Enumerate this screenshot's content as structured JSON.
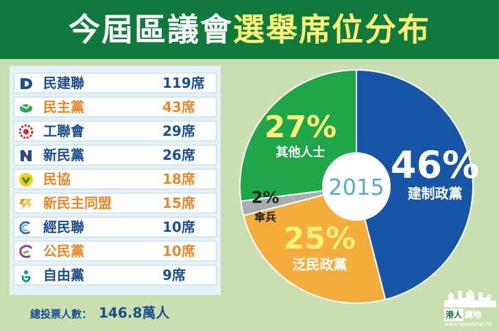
{
  "header": {
    "title_part1": "今屆區議會",
    "title_part2": "選舉席位分布"
  },
  "legend": [
    {
      "name": "民建聯",
      "seats": "119席",
      "color": "blue",
      "icon": "dab-logo-icon"
    },
    {
      "name": "民主黨",
      "seats": "43席",
      "color": "orange",
      "icon": "democratic-party-logo-icon"
    },
    {
      "name": "工聯會",
      "seats": "29席",
      "color": "blue",
      "icon": "ftu-logo-icon"
    },
    {
      "name": "新民黨",
      "seats": "26席",
      "color": "blue",
      "icon": "npp-logo-icon"
    },
    {
      "name": "民協",
      "seats": "18席",
      "color": "orange",
      "icon": "admpl-logo-icon"
    },
    {
      "name": "新民主同盟",
      "seats": "15席",
      "color": "orange",
      "icon": "nda-logo-icon"
    },
    {
      "name": "經民聯",
      "seats": "10席",
      "color": "blue",
      "icon": "bpa-logo-icon"
    },
    {
      "name": "公民黨",
      "seats": "10席",
      "color": "orange",
      "icon": "civic-party-logo-icon"
    },
    {
      "name": "自由黨",
      "seats": "9席",
      "color": "blue",
      "icon": "liberal-party-logo-icon"
    }
  ],
  "total": {
    "label": "總投票人數：",
    "value": "146.8萬人"
  },
  "brand": {
    "name_box": "港人",
    "name_rest": "講地",
    "url": "www.speakout.hk"
  },
  "colors": {
    "header_bg": "#0f7a3c",
    "blue": "#1b4e8f",
    "orange": "#e8882a",
    "background": "#c9dfb2"
  },
  "chart_data": {
    "type": "pie",
    "center_label": "2015",
    "slices": [
      {
        "pct_label": "46%",
        "name": "建制政黨",
        "value": 46,
        "color": "#1955a6",
        "text_color": "#ffffff"
      },
      {
        "pct_label": "25%",
        "name": "泛民政黨",
        "value": 25,
        "color": "#f4ac3c",
        "text_color": "#ffffff"
      },
      {
        "pct_label": "2%",
        "name": "傘兵",
        "value": 2,
        "color": "#a9acaf",
        "text_color": "#222222"
      },
      {
        "pct_label": "27%",
        "name": "其他人士",
        "value": 27,
        "color": "#1fa64a",
        "text_color": "#ffffff"
      }
    ]
  }
}
